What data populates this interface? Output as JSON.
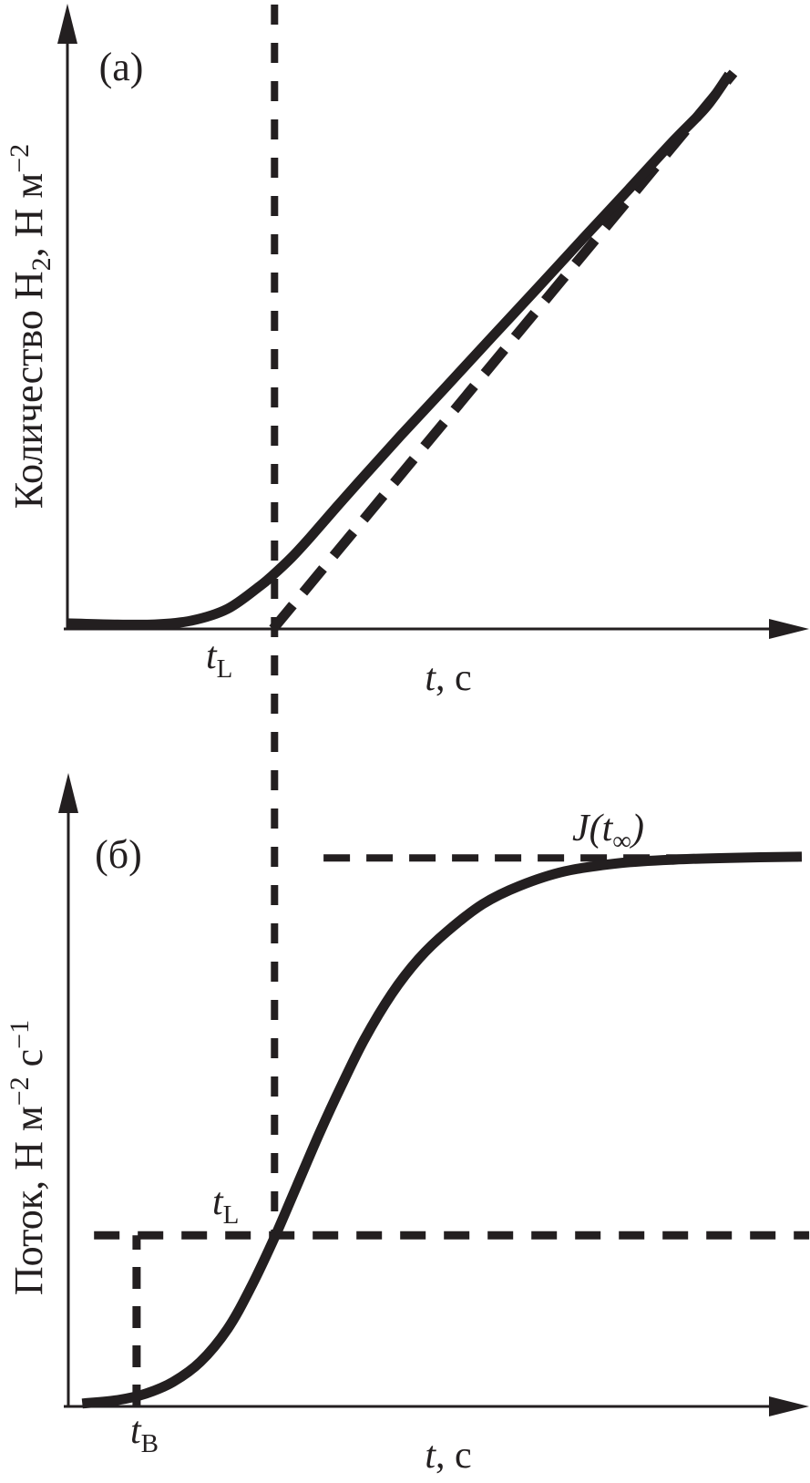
{
  "figure": {
    "ink_color": "#231f20",
    "background": "#ffffff",
    "panel_a": {
      "tag": "(а)",
      "ylabel_parts": {
        "base": "Количество H",
        "sub": "2",
        "mid": ", Н м",
        "sup": "−2"
      },
      "xlabel_parts": {
        "var": "t",
        "rest": ", с"
      },
      "tl_parts": {
        "var": "t",
        "sub": "L"
      }
    },
    "panel_b": {
      "tag": "(б)",
      "ylabel_parts": {
        "base": "Поток, Н м",
        "sup1": "−2",
        "mid": " с",
        "sup2": "−1"
      },
      "xlabel_parts": {
        "var": "t",
        "rest": ", с"
      },
      "tl_parts": {
        "var": "t",
        "sub": "L"
      },
      "tb_parts": {
        "var": "t",
        "sub": "B"
      },
      "jinf_parts": {
        "pre": "J(t",
        "sub": "∞",
        "post": ")"
      }
    }
  },
  "chart_data": [
    {
      "type": "line",
      "panel": "(а)",
      "title": "",
      "xlabel": "t, с",
      "ylabel": "Количество H₂, Н м⁻²",
      "axes": "schematic, no tick marks or numeric scale; relative units 0–100 on both axes",
      "xlim": [
        0,
        100
      ],
      "ylim": [
        0,
        100
      ],
      "grid": false,
      "series": [
        {
          "name": "amount of permeated H₂ (solid curve: lag then linear growth)",
          "style": "solid",
          "x": [
            0,
            5.7,
            11.9,
            16.9,
            21.8,
            26.2,
            28.0,
            30.5,
            33.0,
            36.7,
            40.4,
            45.4,
            51.6,
            57.8,
            64.0,
            70.2,
            76.4,
            82.6,
            87.0,
            90.1
          ],
          "y": [
            1.0,
            0.8,
            0.8,
            1.5,
            3.6,
            7.7,
            9.7,
            12.8,
            16.4,
            22.0,
            27.5,
            34.8,
            43.6,
            52.5,
            61.3,
            70.2,
            79.0,
            87.9,
            93.9,
            99.7
          ]
        },
        {
          "name": "steady-state asymptote (dashed straight line through t = t_L)",
          "style": "dashed",
          "x": [
            28.0,
            90.7
          ],
          "y": [
            0,
            100
          ]
        }
      ],
      "annotations": [
        {
          "id": "tl_marker",
          "label": "t_L",
          "type": "vline",
          "x": 28.2,
          "note": "vertical dashed line spanning panel (а) and continuing down into panel (б)"
        }
      ]
    },
    {
      "type": "line",
      "panel": "(б)",
      "title": "",
      "xlabel": "t, с",
      "ylabel": "Поток, Н м⁻² с⁻¹",
      "axes": "schematic, no tick marks or numeric scale; relative units 0–100 on both axes",
      "xlim": [
        0,
        100
      ],
      "ylim": [
        0,
        100
      ],
      "grid": false,
      "series": [
        {
          "name": "hydrogen flux (solid sigmoid rising to steady state J(t∞))",
          "style": "solid",
          "x": [
            1.9,
            6.8,
            10.6,
            14.3,
            18.0,
            21.7,
            24.8,
            28.0,
            31.1,
            34.2,
            37.3,
            40.4,
            44.1,
            47.8,
            51.6,
            56.5,
            61.5,
            67.7,
            75.2,
            82.6,
            90.1,
            100.0
          ],
          "y": [
            0.5,
            1.1,
            2.2,
            4.2,
            7.6,
            13.2,
            20.1,
            28.5,
            37.5,
            46.5,
            54.9,
            62.7,
            70.4,
            76.4,
            81.0,
            85.7,
            88.8,
            91.3,
            92.7,
            93.3,
            93.6,
            93.8
          ]
        }
      ],
      "annotations": [
        {
          "id": "jinf_level",
          "label": "J(t∞)",
          "type": "hline",
          "y": 93.6,
          "x_start": 34.8,
          "x_end": 99.5,
          "note": "dashed horizontal line at steady-state flux level"
        },
        {
          "id": "flux_at_tl",
          "label": "flux level at t_L",
          "type": "hline",
          "y": 29.2,
          "x_start": 3.5,
          "x_end": 101.0,
          "note": "dashed horizontal line across full panel width"
        },
        {
          "id": "tb_marker",
          "label": "t_B",
          "type": "vline",
          "x": 9.3,
          "y_start": 0,
          "y_end": 29.2,
          "note": "breakthrough-time dashed marker from axis up to flux_at_tl line"
        },
        {
          "id": "tl_label_b",
          "label": "t_L",
          "type": "text",
          "x": 21.0,
          "y": 33.0
        }
      ]
    }
  ]
}
